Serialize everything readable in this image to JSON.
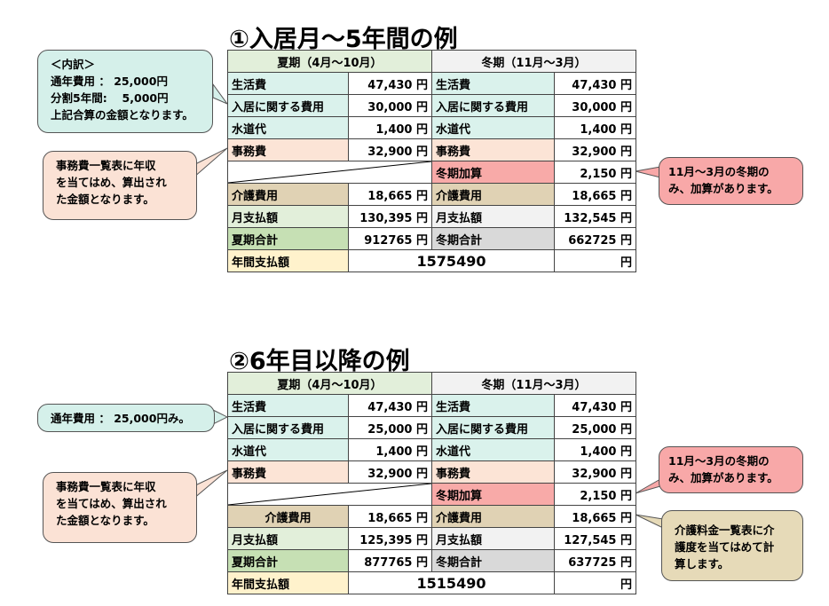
{
  "sections": [
    {
      "title": "①入居月～5年間の例",
      "summer_header": "夏期（4月～10月）",
      "winter_header": "冬期（11月～3月）",
      "rows": [
        {
          "s_label": "生活費",
          "s_value": "47,430 円",
          "w_label": "生活費",
          "w_value": "47,430 円"
        },
        {
          "s_label": "入居に関する費用",
          "s_value": "30,000 円",
          "w_label": "入居に関する費用",
          "w_value": "30,000 円"
        },
        {
          "s_label": "水道代",
          "s_value": "1,400 円",
          "w_label": "水道代",
          "w_value": "1,400 円"
        },
        {
          "s_label": "事務費",
          "s_value": "32,900 円",
          "w_label": "事務費",
          "w_value": "32,900 円"
        }
      ],
      "winter_add": {
        "label": "冬期加算",
        "value": "2,150 円"
      },
      "care": {
        "s_label": "介護費用",
        "s_value": "18,665 円",
        "w_label": "介護費用",
        "w_value": "18,665 円"
      },
      "monthly": {
        "s_label": "月支払額",
        "s_value": "130,395 円",
        "w_label": "月支払額",
        "w_value": "132,545 円"
      },
      "season_total": {
        "s_label": "夏期合計",
        "s_value": "912765 円",
        "w_label": "冬期合計",
        "w_value": "662725 円"
      },
      "annual": {
        "label": "年間支払額",
        "value": "1575490",
        "unit": "円"
      },
      "callouts": {
        "breakdown": [
          "＜内訳＞",
          "通年費用 ： 25,000円",
          "分割5年間:　 5,000円",
          "上記合算の金額となります。"
        ],
        "office": [
          "事務費一覧表に年収",
          "を当てはめ、算出され",
          "た金額となります。"
        ],
        "winter": [
          "11月～3月の冬期の",
          "み、加算があります。"
        ]
      }
    },
    {
      "title": "②6年目以降の例",
      "summer_header": "夏期（4月～10月）",
      "winter_header": "冬期（11月～3月）",
      "rows": [
        {
          "s_label": "生活費",
          "s_value": "47,430 円",
          "w_label": "生活費",
          "w_value": "47,430 円"
        },
        {
          "s_label": "入居に関する費用",
          "s_value": "25,000 円",
          "w_label": "入居に関する費用",
          "w_value": "25,000 円"
        },
        {
          "s_label": "水道代",
          "s_value": "1,400 円",
          "w_label": "水道代",
          "w_value": "1,400 円"
        },
        {
          "s_label": "事務費",
          "s_value": "32,900 円",
          "w_label": "事務費",
          "w_value": "32,900 円"
        }
      ],
      "winter_add": {
        "label": "冬期加算",
        "value": "2,150 円"
      },
      "care": {
        "s_label": "介護費用",
        "s_value": "18,665 円",
        "w_label": "介護費用",
        "w_value": "18,665 円"
      },
      "monthly": {
        "s_label": "月支払額",
        "s_value": "125,395 円",
        "w_label": "月支払額",
        "w_value": "127,545 円"
      },
      "season_total": {
        "s_label": "夏期合計",
        "s_value": "877765 円",
        "w_label": "冬期合計",
        "w_value": "637725 円"
      },
      "annual": {
        "label": "年間支払額",
        "value": "1515490",
        "unit": "円"
      },
      "callouts": {
        "breakdown": [
          "通年費用 ： 25,000円み。"
        ],
        "office": [
          "事務費一覧表に年収",
          "を当てはめ、算出され",
          "た金額となります。"
        ],
        "winter": [
          "11月～3月の冬期の",
          "み、加算があります。"
        ],
        "care": [
          "介護料金一覧表に介",
          "護度を当てはめて計",
          "算します。"
        ]
      }
    }
  ]
}
